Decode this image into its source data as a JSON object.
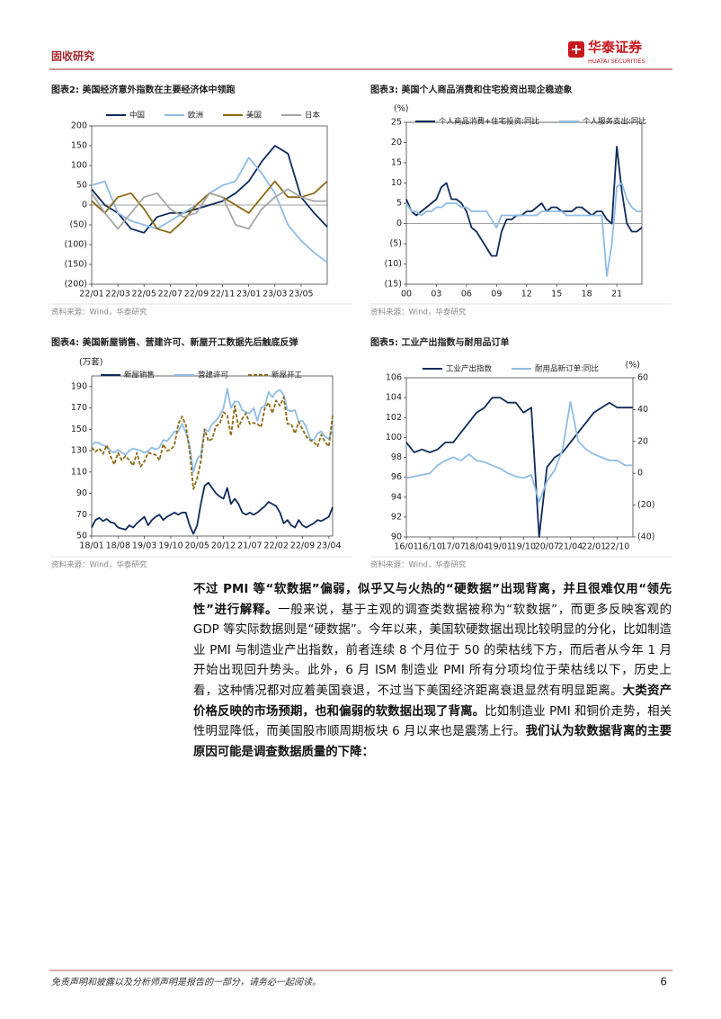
{
  "header": {
    "section": "固收研究",
    "brand": "华泰证券",
    "brand_en": "HUATAI SECURITIES"
  },
  "chart_data": [
    {
      "type": "line",
      "title": "图表2:  美国经济意外指数在主要经济体中领跑",
      "source": "资料来源：Wind，华泰研究",
      "categories": [
        "22/01",
        null,
        "22/03",
        null,
        "22/05",
        null,
        "22/07",
        null,
        "22/09",
        null,
        "22/11",
        null,
        "23/01",
        null,
        "23/03",
        null,
        "23/05",
        null,
        null
      ],
      "series": [
        {
          "name": "中国",
          "color": "#0f2b5b",
          "values": [
            40,
            0,
            -20,
            -60,
            -70,
            -30,
            -20,
            -20,
            -10,
            0,
            10,
            30,
            60,
            110,
            150,
            130,
            20,
            -20,
            -55
          ]
        },
        {
          "name": "欧洲",
          "color": "#8fbce6",
          "values": [
            50,
            60,
            -20,
            -40,
            -50,
            -60,
            -40,
            -20,
            0,
            30,
            50,
            60,
            120,
            80,
            30,
            -50,
            -90,
            -120,
            -145
          ]
        },
        {
          "name": "美国",
          "color": "#8b6914",
          "values": [
            10,
            -20,
            20,
            30,
            -10,
            -60,
            -70,
            -40,
            0,
            30,
            20,
            0,
            -20,
            20,
            60,
            20,
            20,
            30,
            60
          ]
        },
        {
          "name": "日本",
          "color": "#a6a6a6",
          "values": [
            30,
            -20,
            -60,
            -20,
            20,
            30,
            -10,
            -30,
            -20,
            30,
            20,
            -50,
            -60,
            -10,
            20,
            40,
            20,
            10,
            10
          ]
        }
      ],
      "ylim": [
        -200,
        200
      ],
      "yticks": [
        200,
        150,
        100,
        50,
        0,
        {
          "value": -50,
          "label": "(50)"
        },
        {
          "value": -100,
          "label": "(100)"
        },
        {
          "value": -150,
          "label": "(150)"
        },
        {
          "value": -200,
          "label": "(200)"
        }
      ]
    },
    {
      "type": "line",
      "title": "图表3:  美国个人商品消费和住宅投资出现企稳迹象",
      "source": "资料来源：Wind，华泰研究",
      "y_unit": "(%)",
      "categories": [
        "00",
        null,
        null,
        null,
        null,
        null,
        "03",
        null,
        null,
        null,
        null,
        null,
        "06",
        null,
        null,
        null,
        null,
        null,
        "09",
        null,
        null,
        null,
        null,
        null,
        "12",
        null,
        null,
        null,
        null,
        null,
        "15",
        null,
        null,
        null,
        null,
        null,
        "18",
        null,
        null,
        null,
        null,
        null,
        "21",
        null,
        null,
        null,
        null,
        null
      ],
      "series": [
        {
          "name": "个人商品消费+住宅投资:同比",
          "color": "#0f2b5b",
          "values": [
            6,
            3,
            2,
            3,
            4,
            5,
            6,
            9,
            10,
            6,
            6,
            5,
            3,
            -1,
            -2,
            -4,
            -6,
            -8,
            -8,
            -2,
            1,
            1,
            2,
            2,
            3,
            3,
            4,
            5,
            3,
            4,
            4,
            3,
            3,
            3,
            4,
            4,
            3,
            2,
            3,
            3,
            1,
            0,
            19,
            8,
            0,
            -2,
            -2,
            -1
          ]
        },
        {
          "name": "个人服务支出:同比",
          "color": "#8fbce6",
          "values": [
            5,
            3,
            3,
            2,
            3,
            3,
            4,
            4,
            5,
            5,
            5,
            4,
            4,
            3,
            3,
            3,
            3,
            1,
            -1,
            2,
            2,
            2,
            2,
            2,
            2,
            2,
            2,
            3,
            3,
            3,
            3,
            3,
            2,
            2,
            2,
            2,
            2,
            2,
            2,
            2,
            -13,
            -5,
            9,
            10,
            6,
            4,
            3,
            3
          ]
        }
      ],
      "ylim": [
        -15,
        25
      ],
      "yticks": [
        25,
        20,
        15,
        10,
        5,
        0,
        {
          "value": -5,
          "label": "(5)"
        },
        {
          "value": -10,
          "label": "(10)"
        },
        {
          "value": -15,
          "label": "(15)"
        }
      ]
    },
    {
      "type": "line",
      "title": "图表4:  美国新屋销售、营建许可、新屋开工数据先后触底反弹",
      "source": "资料来源：Wind，华泰研究",
      "y_unit": "(万套)",
      "categories": [
        "18/01",
        null,
        null,
        null,
        null,
        null,
        null,
        "18/08",
        null,
        null,
        null,
        null,
        null,
        null,
        "19/03",
        null,
        null,
        null,
        null,
        null,
        null,
        "19/10",
        null,
        null,
        null,
        null,
        null,
        null,
        "20/05",
        null,
        null,
        null,
        null,
        null,
        null,
        "20/12",
        null,
        null,
        null,
        null,
        null,
        null,
        "21/07",
        null,
        null,
        null,
        null,
        null,
        null,
        "22/02",
        null,
        null,
        null,
        null,
        null,
        null,
        "22/09",
        null,
        null,
        null,
        null,
        null,
        null,
        "23/04",
        null
      ],
      "series": [
        {
          "name": "新屋销售",
          "color": "#0f2b5b",
          "values": [
            58,
            65,
            67,
            64,
            66,
            63,
            62,
            58,
            57,
            56,
            60,
            58,
            62,
            65,
            68,
            60,
            65,
            68,
            70,
            65,
            68,
            70,
            72,
            70,
            72,
            72,
            60,
            52,
            60,
            80,
            97,
            100,
            95,
            90,
            87,
            85,
            95,
            80,
            85,
            80,
            72,
            70,
            72,
            70,
            72,
            75,
            78,
            82,
            80,
            78,
            72,
            62,
            65,
            60,
            58,
            65,
            60,
            58,
            60,
            62,
            65,
            64,
            66,
            68,
            77
          ]
        },
        {
          "name": "营建许可",
          "color": "#8fbce6",
          "values": [
            135,
            138,
            137,
            135,
            134,
            130,
            128,
            131,
            128,
            126,
            130,
            132,
            131,
            130,
            128,
            130,
            133,
            131,
            133,
            140,
            139,
            143,
            148,
            148,
            155,
            147,
            135,
            110,
            122,
            126,
            150,
            148,
            155,
            158,
            163,
            170,
            188,
            170,
            176,
            176,
            168,
            166,
            165,
            170,
            158,
            170,
            172,
            185,
            180,
            185,
            187,
            182,
            168,
            167,
            168,
            157,
            158,
            152,
            141,
            140,
            146,
            148,
            143,
            141,
            150
          ]
        },
        {
          "name": "新屋开工",
          "color": "#8b6914",
          "dashed": true,
          "values": [
            133,
            129,
            132,
            127,
            135,
            125,
            117,
            128,
            121,
            125,
            121,
            116,
            128,
            115,
            120,
            128,
            127,
            126,
            121,
            136,
            130,
            131,
            135,
            155,
            162,
            154,
            130,
            94,
            104,
            120,
            150,
            139,
            141,
            153,
            155,
            166,
            163,
            144,
            172,
            152,
            160,
            165,
            155,
            156,
            155,
            152,
            170,
            175,
            165,
            177,
            172,
            180,
            155,
            155,
            146,
            157,
            150,
            143,
            140,
            138,
            134,
            145,
            138,
            134,
            163
          ]
        }
      ],
      "ylim": [
        50,
        200
      ],
      "yticks": [
        50,
        70,
        90,
        110,
        130,
        150,
        170,
        190
      ]
    },
    {
      "type": "line",
      "title": "图表5:  工业产出指数与耐用品订单",
      "source": "资料来源：Wind，华泰研究",
      "y2_unit": "(%)",
      "categories": [
        "16/01",
        null,
        null,
        "16/10",
        null,
        null,
        "17/07",
        null,
        null,
        "18/04",
        null,
        null,
        "19/01",
        null,
        null,
        "19/10",
        null,
        null,
        "20/07",
        null,
        null,
        "21/04",
        null,
        null,
        "22/01",
        null,
        null,
        "22/10",
        null,
        null
      ],
      "series": [
        {
          "name": "工业产出指数",
          "color": "#0f2b5b",
          "values": [
            99.5,
            98.5,
            98.8,
            98.5,
            98.8,
            99.5,
            99.5,
            100.5,
            101.5,
            102.5,
            103,
            104,
            104,
            103.5,
            103.5,
            102.5,
            103,
            90,
            97,
            98,
            98.5,
            99.5,
            100.5,
            101.5,
            102.5,
            103,
            103.5,
            103,
            103,
            103
          ]
        },
        {
          "name": "耐用品新订单:同比",
          "color": "#8fbce6",
          "axis": "y2",
          "values": [
            -3,
            -2,
            -1,
            0,
            5,
            8,
            10,
            8,
            12,
            8,
            7,
            5,
            3,
            0,
            -2,
            -3,
            -1,
            -18,
            -5,
            2,
            15,
            45,
            20,
            15,
            12,
            10,
            8,
            8,
            5,
            5
          ]
        }
      ],
      "ylim": [
        90,
        106
      ],
      "yticks": [
        90,
        92,
        94,
        96,
        98,
        100,
        102,
        104,
        106
      ],
      "y2lim": [
        -40,
        60
      ],
      "y2ticks": [
        {
          "value": -40,
          "label": "(40)"
        },
        {
          "value": -20,
          "label": "(20)"
        },
        0,
        20,
        40,
        60
      ]
    }
  ],
  "body": {
    "runs": [
      {
        "text": "不过 PMI 等“软数据”偏弱，似乎又与火热的“硬数据”出现背离，并且很难仅用“领先性”进行解释。",
        "bold": true
      },
      {
        "text": "一般来说，基于主观的调查类数据被称为“软数据”，而更多反映客观的 GDP 等实际数据则是“硬数据”。今年以来，美国软硬数据出现比较明显的分化，比如制造业 PMI 与制造业产出指数，前者连续 8 个月位于 50 的荣枯线下方，而后者从今年 1 月开始出现回升势头。此外，6 月 ISM 制造业 PMI 所有分项均位于荣枯线以下，历史上看，这种情况都对应着美国衰退，不过当下美国经济距离衰退显然有明显距离。",
        "bold": false
      },
      {
        "text": "大类资产价格反映的市场预期，也和偏弱的软数据出现了背离。",
        "bold": true
      },
      {
        "text": "比如制造业 PMI 和铜价走势，相关性明显降低，而美国股市顺周期板块 6 月以来也是震荡上行。",
        "bold": false
      },
      {
        "text": "我们认为软数据背离的主要原因可能是调查数据质量的下降：",
        "bold": true
      }
    ]
  },
  "footer": {
    "disclaimer": "免责声明和披露以及分析师声明是报告的一部分，请务必一起阅读。",
    "page_number": "6"
  }
}
